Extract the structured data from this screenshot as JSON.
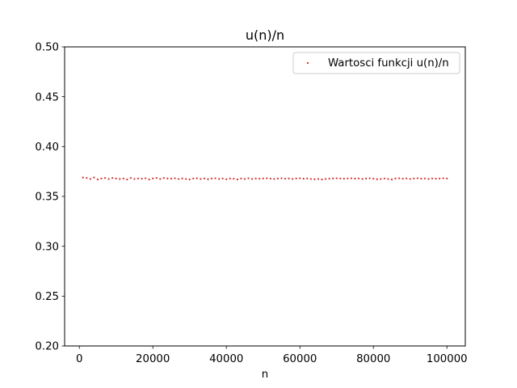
{
  "chart_data": {
    "type": "scatter",
    "title": "u(n)/n",
    "xlabel": "n",
    "ylabel": "",
    "xlim": [
      -4000,
      105000
    ],
    "ylim": [
      0.2,
      0.5
    ],
    "xticks": [
      0,
      20000,
      40000,
      60000,
      80000,
      100000
    ],
    "xtick_labels": [
      "0",
      "20000",
      "40000",
      "60000",
      "80000",
      "100000"
    ],
    "yticks": [
      0.2,
      0.25,
      0.3,
      0.35,
      0.4,
      0.45,
      0.5
    ],
    "ytick_labels": [
      "0.20",
      "0.25",
      "0.30",
      "0.35",
      "0.40",
      "0.45",
      "0.50"
    ],
    "grid": false,
    "legend_position": "top-right",
    "series": [
      {
        "name": "Wartosci funkcji u(n)/n",
        "color": "#d62728",
        "marker": "point",
        "x": [
          1000,
          2000,
          3000,
          4000,
          5000,
          6000,
          7000,
          8000,
          9000,
          10000,
          11000,
          12000,
          13000,
          14000,
          15000,
          16000,
          17000,
          18000,
          19000,
          20000,
          21000,
          22000,
          23000,
          24000,
          25000,
          26000,
          27000,
          28000,
          29000,
          30000,
          31000,
          32000,
          33000,
          34000,
          35000,
          36000,
          37000,
          38000,
          39000,
          40000,
          41000,
          42000,
          43000,
          44000,
          45000,
          46000,
          47000,
          48000,
          49000,
          50000,
          51000,
          52000,
          53000,
          54000,
          55000,
          56000,
          57000,
          58000,
          59000,
          60000,
          61000,
          62000,
          63000,
          64000,
          65000,
          66000,
          67000,
          68000,
          69000,
          70000,
          71000,
          72000,
          73000,
          74000,
          75000,
          76000,
          77000,
          78000,
          79000,
          80000,
          81000,
          82000,
          83000,
          84000,
          85000,
          86000,
          87000,
          88000,
          89000,
          90000,
          91000,
          92000,
          93000,
          94000,
          95000,
          96000,
          97000,
          98000,
          99000,
          100000
        ],
        "y": [
          0.369,
          0.3685,
          0.3675,
          0.369,
          0.367,
          0.368,
          0.3685,
          0.3675,
          0.3685,
          0.368,
          0.3675,
          0.368,
          0.367,
          0.3685,
          0.3675,
          0.368,
          0.3678,
          0.3682,
          0.367,
          0.368,
          0.3685,
          0.3675,
          0.3685,
          0.368,
          0.3678,
          0.3682,
          0.3675,
          0.368,
          0.3675,
          0.367,
          0.368,
          0.3682,
          0.3675,
          0.368,
          0.3672,
          0.368,
          0.3682,
          0.3675,
          0.368,
          0.3672,
          0.368,
          0.3678,
          0.367,
          0.368,
          0.3675,
          0.3682,
          0.3675,
          0.368,
          0.3678,
          0.368,
          0.3682,
          0.3678,
          0.3675,
          0.368,
          0.3682,
          0.3678,
          0.368,
          0.3675,
          0.368,
          0.3682,
          0.3678,
          0.368,
          0.3675,
          0.3672,
          0.3675,
          0.367,
          0.3675,
          0.3678,
          0.368,
          0.3682,
          0.368,
          0.3678,
          0.368,
          0.3682,
          0.3678,
          0.368,
          0.3675,
          0.368,
          0.3682,
          0.3678,
          0.3672,
          0.3675,
          0.368,
          0.3675,
          0.367,
          0.368,
          0.3682,
          0.3678,
          0.368,
          0.3675,
          0.368,
          0.3682,
          0.3678,
          0.368,
          0.3675,
          0.368,
          0.3678,
          0.368,
          0.3682,
          0.368
        ]
      }
    ]
  }
}
